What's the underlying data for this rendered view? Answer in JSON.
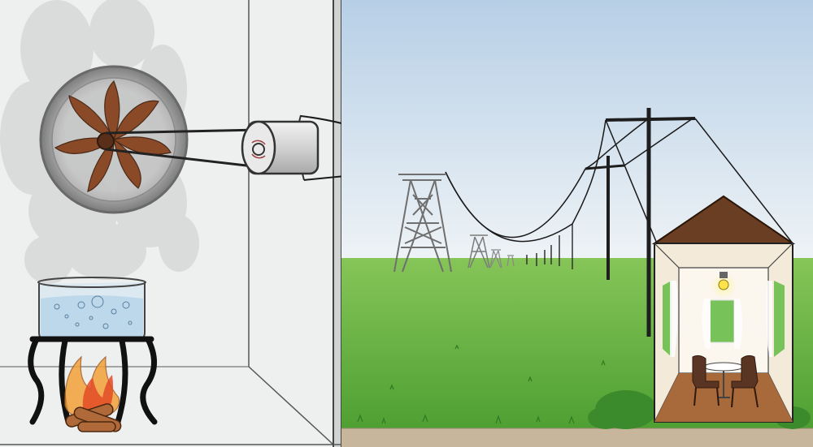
{
  "scene": {
    "description_free": true,
    "colors": {
      "room_wall": "#eef0ef",
      "room_floor": "#dfe2e0",
      "sky_top": "#b7cfe6",
      "sky_bottom": "#eef3f6",
      "grass_far": "#86c558",
      "grass_near": "#4e9f32",
      "ground": "#c7b59c",
      "fan_blade": "#8a4a28",
      "fan_housing": "#6e6e6e",
      "generator": "#d9d9d9",
      "water": "#bcd8ea",
      "fire_outer": "#f2a13a",
      "fire_inner": "#e34b26",
      "roof": "#6a3e22",
      "house_wall": "#f3ead9",
      "house_floor": "#a8693b",
      "window": "#78c25a",
      "furniture": "#5a3524",
      "tower": "#7f7f7f",
      "pole": "#222222",
      "bush": "#3b8a2c"
    },
    "icons": [
      "steam-cloud-icon",
      "fan-turbine-icon",
      "generator-icon",
      "boiling-pot-icon",
      "campfire-icon",
      "transmission-tower-icon",
      "utility-pole-icon",
      "house-icon",
      "light-bulb-icon"
    ]
  }
}
